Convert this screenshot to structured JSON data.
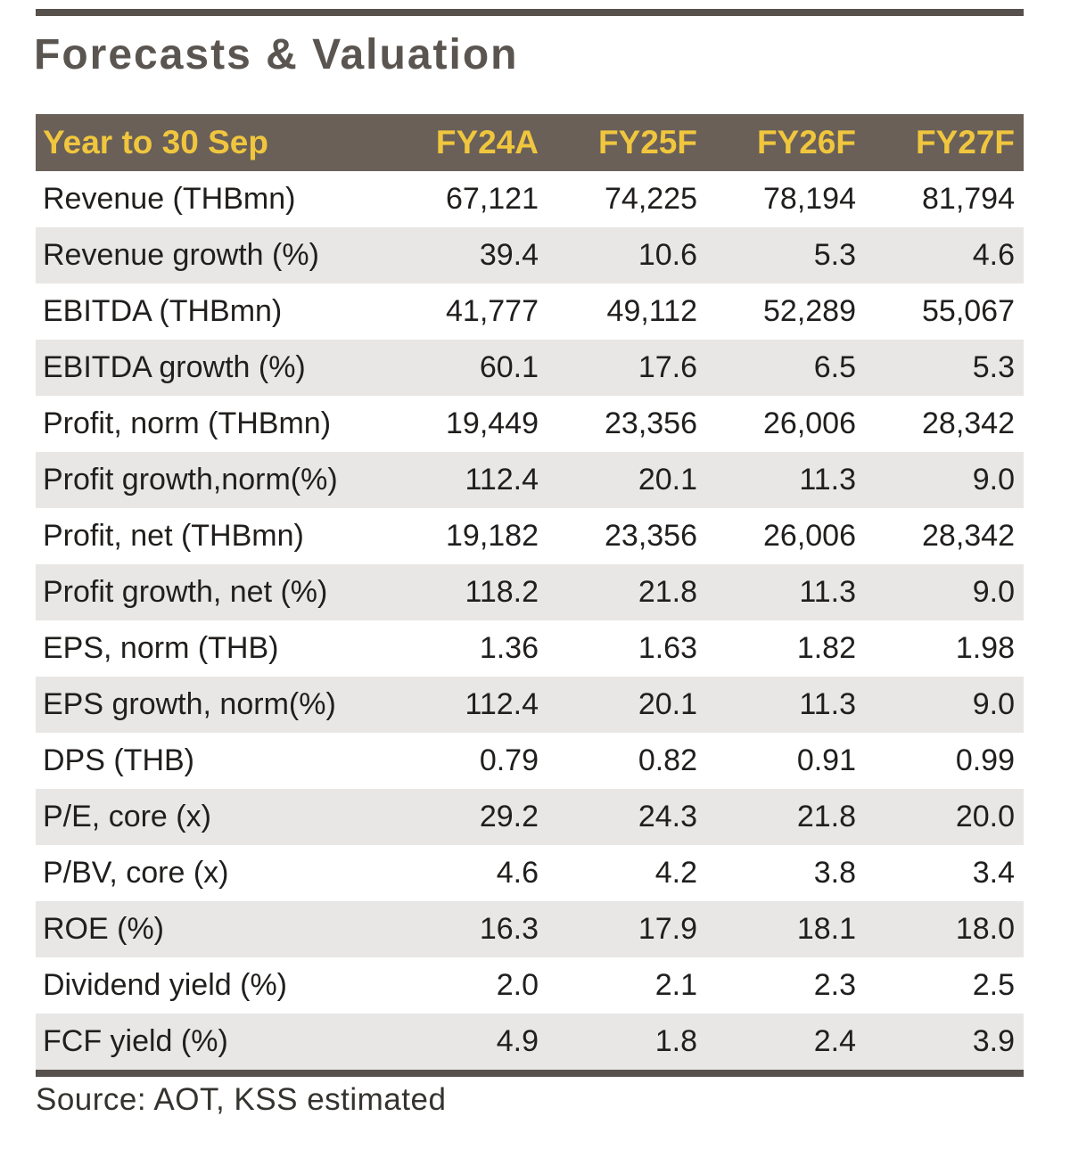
{
  "page": {
    "title": "Forecasts & Valuation",
    "source": "Source: AOT, KSS estimated"
  },
  "colors": {
    "header_bg": "#6a6058",
    "header_text": "#f0c63e",
    "row_alt_bg": "#e8e7e6",
    "rule": "#57514e",
    "title_text": "#5a5550",
    "body_text": "#211f1d"
  },
  "chart_data": {
    "type": "table",
    "title": "Forecasts & Valuation",
    "columns": [
      "Year to 30 Sep",
      "FY24A",
      "FY25F",
      "FY26F",
      "FY27F"
    ],
    "rows": [
      {
        "label": "Revenue (THBmn)",
        "values": [
          "67,121",
          "74,225",
          "78,194",
          "81,794"
        ]
      },
      {
        "label": "Revenue growth (%)",
        "values": [
          "39.4",
          "10.6",
          "5.3",
          "4.6"
        ]
      },
      {
        "label": "EBITDA (THBmn)",
        "values": [
          "41,777",
          "49,112",
          "52,289",
          "55,067"
        ]
      },
      {
        "label": "EBITDA growth (%)",
        "values": [
          "60.1",
          "17.6",
          "6.5",
          "5.3"
        ]
      },
      {
        "label": "Profit, norm (THBmn)",
        "values": [
          "19,449",
          "23,356",
          "26,006",
          "28,342"
        ]
      },
      {
        "label": "Profit growth,norm(%)",
        "values": [
          "112.4",
          "20.1",
          "11.3",
          "9.0"
        ]
      },
      {
        "label": "Profit, net (THBmn)",
        "values": [
          "19,182",
          "23,356",
          "26,006",
          "28,342"
        ]
      },
      {
        "label": "Profit growth, net (%)",
        "values": [
          "118.2",
          "21.8",
          "11.3",
          "9.0"
        ]
      },
      {
        "label": "EPS, norm (THB)",
        "values": [
          "1.36",
          "1.63",
          "1.82",
          "1.98"
        ]
      },
      {
        "label": "EPS growth, norm(%)",
        "values": [
          "112.4",
          "20.1",
          "11.3",
          "9.0"
        ]
      },
      {
        "label": "DPS (THB)",
        "values": [
          "0.79",
          "0.82",
          "0.91",
          "0.99"
        ]
      },
      {
        "label": "P/E, core (x)",
        "values": [
          "29.2",
          "24.3",
          "21.8",
          "20.0"
        ]
      },
      {
        "label": "P/BV, core (x)",
        "values": [
          "4.6",
          "4.2",
          "3.8",
          "3.4"
        ]
      },
      {
        "label": "ROE (%)",
        "values": [
          "16.3",
          "17.9",
          "18.1",
          "18.0"
        ]
      },
      {
        "label": "Dividend yield (%)",
        "values": [
          "2.0",
          "2.1",
          "2.3",
          "2.5"
        ]
      },
      {
        "label": "FCF yield (%)",
        "values": [
          "4.9",
          "1.8",
          "2.4",
          "3.9"
        ]
      }
    ]
  }
}
